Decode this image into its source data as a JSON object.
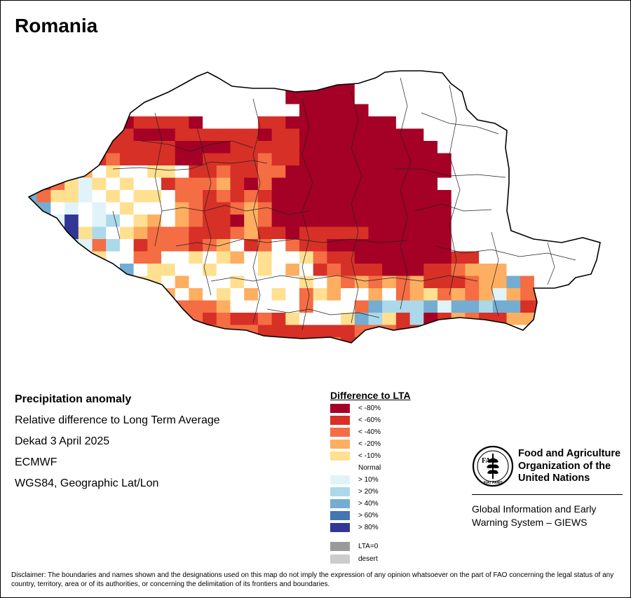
{
  "map_title": "Romania",
  "info": {
    "heading": "Precipitation anomaly",
    "subtitle": "Relative difference to Long Term Average",
    "period": "Dekad 3 April 2025",
    "source": "ECMWF",
    "projection": "WGS84, Geographic Lat/Lon"
  },
  "legend": {
    "title": "Difference to LTA",
    "items": [
      {
        "label": "< -80%",
        "color": "#a50026"
      },
      {
        "label": "< -60%",
        "color": "#d73027"
      },
      {
        "label": "< -40%",
        "color": "#f46d43"
      },
      {
        "label": "< -20%",
        "color": "#fdae61"
      },
      {
        "label": "< -10%",
        "color": "#fee090"
      },
      {
        "label": "Normal",
        "color": "#ffffff"
      },
      {
        "label": "> 10%",
        "color": "#e0f3f8"
      },
      {
        "label": "> 20%",
        "color": "#abd9e9"
      },
      {
        "label": "> 40%",
        "color": "#74add1"
      },
      {
        "label": "> 60%",
        "color": "#4575b4"
      },
      {
        "label": "> 80%",
        "color": "#313695"
      }
    ],
    "extra_items": [
      {
        "label": "LTA=0",
        "color": "#999999"
      },
      {
        "label": "desert",
        "color": "#cccccc"
      }
    ]
  },
  "organization": {
    "logo_icon": "fao-emblem-icon",
    "logo_text": "FAO",
    "logo_motto": "FIAT PANIS",
    "name_lines": [
      "Food and Agriculture",
      "Organization of the",
      "United Nations"
    ],
    "system_lines": [
      "Global Information and Early",
      "Warning System – GIEWS"
    ]
  },
  "disclaimer": "Disclaimer: The boundaries and names shown and the designations used on this map do not imply the expression of any opinion whatsoever on the part of FAO concerning the legal status of any country, territory, area or of its authorities, or concerning the delimitation of its frontiers and boundaries.",
  "grid_rows": [
    "..........................................",
    "...................aaaaa.................",
    "...................aaaaa.................",
    ".....a..............aaaaa................",
    "....bbbabbbba....bbaaaaaaaa..............",
    "...aabbbaaabbbbbbabbaaaaaaaaa...........",
    "..bbbbbbbbbaaaabbbbbaaaaaaaaaa..........",
    "..cdcbcbbbbaabbbbcbbaaaaaaaaaaa.........",
    "..cpdNpNNppNbbcbbccaaaaaaaaaaaa.........",
    ".bcpqpNpNNbcccdbacaaaaaaaaaaaa..........",
    "scppqNpNppNccbcbcbaaaaaaaaaaaaa.........",
    "ssNqNqNpNNNdcbbcdcaaaaaaaaaaaaa.........",
    "NNqtNqrNpdNdcbbadcaaaaaaaaaaaaa.........",
    ".tttprNpdcccbbbcdbbabbbbbaaaaaa.........",
    ".ttrqcrNbcccbcdNbcNcbbaaaaaaaaa........",
    ".dNqrpNNccNNpNpdNpNNpcbbaaaaaaabb.......",
    ".dNrNrNsNppNNpNNNpNdNbcbbbaaabbcddd.....",
    "..dNrNcNppNdNNNpNNNNpNdcdcdcdbbbcddsc...",
    "...ddqprrcdNdNpNdNpNcpdNNdNcdpcdcdqdcc..",
    "....tbrrrcccccdNNNNNcNNNcsrrrsqssrssbb..",
    "....tpcrrscccbcbbcbpNNNpsrpbrabdcbbdd...",
    ".....ttsrqcbbccccbbbbbbbcccbbbdccbb.....",
    "......ttpcbbcccbbbbbbbcbbbbcbb.cc.......",
    "........ccbbb..bbbb..bbq................",
    "...........bbb..bbbb....................."
  ]
}
